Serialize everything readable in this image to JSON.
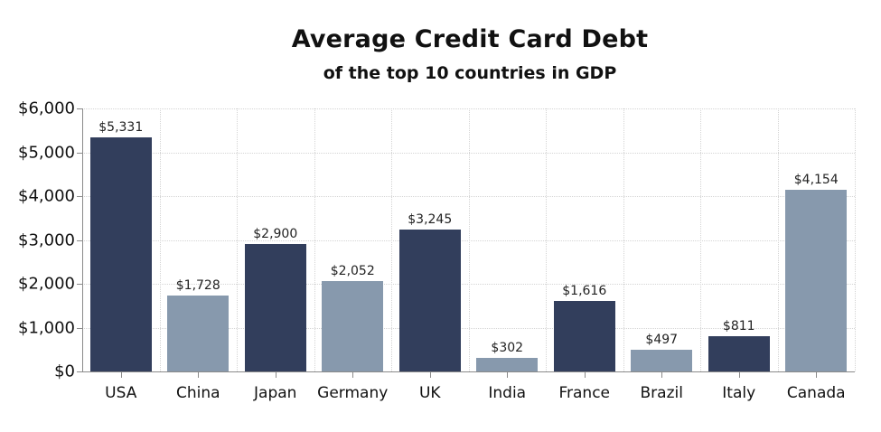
{
  "chart_data": {
    "type": "bar",
    "title": "Average Credit Card Debt",
    "subtitle": "of the top 10 countries in GDP",
    "xlabel": "",
    "ylabel": "",
    "ylim": [
      0,
      6000
    ],
    "yticks": [
      "$0",
      "$1,000",
      "$2,000",
      "$3,000",
      "$4,000",
      "$5,000",
      "$6,000"
    ],
    "grid": true,
    "legend": null,
    "categories": [
      "USA",
      "China",
      "Japan",
      "Germany",
      "UK",
      "India",
      "France",
      "Brazil",
      "Italy",
      "Canada"
    ],
    "values": [
      5331,
      1728,
      2900,
      2052,
      3245,
      302,
      1616,
      497,
      811,
      4154
    ],
    "value_labels": [
      "$5,331",
      "$1,728",
      "$2,900",
      "$2,052",
      "$3,245",
      "$302",
      "$1,616",
      "$497",
      "$811",
      "$4,154"
    ],
    "bar_colors": [
      "#323e5c",
      "#8799ad",
      "#323e5c",
      "#8799ad",
      "#323e5c",
      "#8799ad",
      "#323e5c",
      "#8799ad",
      "#323e5c",
      "#8799ad"
    ]
  },
  "colors": {
    "dark_bar": "#323e5c",
    "light_bar": "#8799ad",
    "gridline": "#d4d4d4",
    "axis": "#8a8a8a"
  }
}
